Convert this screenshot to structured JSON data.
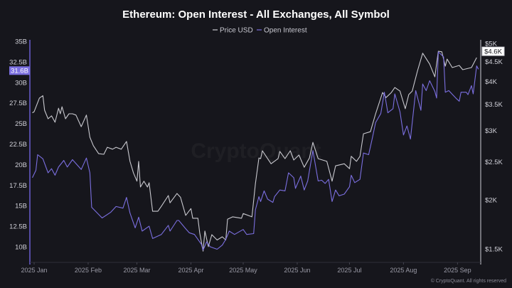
{
  "chart_data": {
    "type": "line",
    "title": "Ethereum: Open Interest - All Exchanges, All Symbol",
    "watermark": "CryptoQuant",
    "copyright": "© CryptoQuant. All rights reserved",
    "legend": {
      "placement": "top-center",
      "entries": [
        "Price USD",
        "Open Interest"
      ]
    },
    "grid": false,
    "x_axis": {
      "type": "date",
      "range": [
        "2024-12-31",
        "2025-09-13"
      ],
      "ticks": [
        {
          "date": "2025-01-01",
          "label": "2025 Jan"
        },
        {
          "date": "2025-02-01",
          "label": "2025 Feb"
        },
        {
          "date": "2025-03-01",
          "label": "2025 Mar"
        },
        {
          "date": "2025-04-01",
          "label": "2025 Apr"
        },
        {
          "date": "2025-05-01",
          "label": "2025 May"
        },
        {
          "date": "2025-06-01",
          "label": "2025 Jun"
        },
        {
          "date": "2025-07-01",
          "label": "2025 Jul"
        },
        {
          "date": "2025-08-01",
          "label": "2025 Aug"
        },
        {
          "date": "2025-09-01",
          "label": "2025 Sep"
        }
      ]
    },
    "y_left": {
      "scale": "linear",
      "range": [
        10,
        35
      ],
      "unit": "B",
      "ticks": [
        {
          "value": 10,
          "label": "10B"
        },
        {
          "value": 12.5,
          "label": "12.5B"
        },
        {
          "value": 15,
          "label": "15B"
        },
        {
          "value": 17.5,
          "label": "17.5B"
        },
        {
          "value": 20,
          "label": "20B"
        },
        {
          "value": 22.5,
          "label": "22.5B"
        },
        {
          "value": 25,
          "label": "25B"
        },
        {
          "value": 27.5,
          "label": "27.5B"
        },
        {
          "value": 30,
          "label": "30B"
        },
        {
          "value": 32.5,
          "label": "32.5B"
        },
        {
          "value": 35,
          "label": "35B"
        }
      ],
      "current_label": "31.6B"
    },
    "y_right": {
      "scale": "log",
      "range": [
        1500,
        5000
      ],
      "unit": "USD",
      "ticks": [
        {
          "value": 1500,
          "label": "$1.5K"
        },
        {
          "value": 2000,
          "label": "$2K"
        },
        {
          "value": 2500,
          "label": "$2.5K"
        },
        {
          "value": 3000,
          "label": "$3K"
        },
        {
          "value": 3500,
          "label": "$3.5K"
        },
        {
          "value": 4000,
          "label": "$4K"
        },
        {
          "value": 4500,
          "label": "$4.5K"
        },
        {
          "value": 5000,
          "label": "$5K"
        }
      ],
      "current_label": "$4.6K"
    },
    "colors": {
      "price": "#c9c9cf",
      "open_interest": "#7b6fe0",
      "background": "#16161c"
    },
    "series": [
      {
        "name": "Price USD",
        "axis": "right",
        "x": [
          "2024-12-31",
          "2025-01-01",
          "2025-01-04",
          "2025-01-06",
          "2025-01-07",
          "2025-01-09",
          "2025-01-11",
          "2025-01-13",
          "2025-01-15",
          "2025-01-16",
          "2025-01-17",
          "2025-01-19",
          "2025-01-21",
          "2025-01-23",
          "2025-01-25",
          "2025-01-28",
          "2025-01-31",
          "2025-02-02",
          "2025-02-04",
          "2025-02-07",
          "2025-02-10",
          "2025-02-12",
          "2025-02-15",
          "2025-02-17",
          "2025-02-20",
          "2025-02-23",
          "2025-02-25",
          "2025-02-27",
          "2025-03-01",
          "2025-03-02",
          "2025-03-03",
          "2025-03-05",
          "2025-03-07",
          "2025-03-08",
          "2025-03-10",
          "2025-03-13",
          "2025-03-15",
          "2025-03-19",
          "2025-03-20",
          "2025-03-24",
          "2025-03-26",
          "2025-03-29",
          "2025-04-01",
          "2025-04-02",
          "2025-04-05",
          "2025-04-06",
          "2025-04-08",
          "2025-04-09",
          "2025-04-11",
          "2025-04-13",
          "2025-04-16",
          "2025-04-19",
          "2025-04-21",
          "2025-04-22",
          "2025-04-25",
          "2025-04-30",
          "2025-05-01",
          "2025-05-06",
          "2025-05-08",
          "2025-05-10",
          "2025-05-11",
          "2025-05-12",
          "2025-05-17",
          "2025-05-21",
          "2025-05-22",
          "2025-05-25",
          "2025-05-28",
          "2025-05-30",
          "2025-06-02",
          "2025-06-05",
          "2025-06-08",
          "2025-06-10",
          "2025-06-13",
          "2025-06-18",
          "2025-06-21",
          "2025-06-23",
          "2025-06-28",
          "2025-07-01",
          "2025-07-02",
          "2025-07-05",
          "2025-07-07",
          "2025-07-09",
          "2025-07-13",
          "2025-07-16",
          "2025-07-20",
          "2025-07-22",
          "2025-07-25",
          "2025-07-27",
          "2025-07-30",
          "2025-08-02",
          "2025-08-04",
          "2025-08-06",
          "2025-08-09",
          "2025-08-12",
          "2025-08-16",
          "2025-08-19",
          "2025-08-21",
          "2025-08-23",
          "2025-08-25",
          "2025-08-26",
          "2025-08-29",
          "2025-09-02",
          "2025-09-04",
          "2025-09-09",
          "2025-09-12"
        ],
        "values": [
          3330,
          3350,
          3630,
          3680,
          3380,
          3215,
          3270,
          3150,
          3420,
          3310,
          3450,
          3215,
          3310,
          3310,
          3285,
          3070,
          3285,
          2885,
          2745,
          2620,
          2610,
          2720,
          2690,
          2720,
          2690,
          2815,
          2505,
          2340,
          2230,
          2505,
          2155,
          2230,
          2155,
          2210,
          1870,
          1870,
          1925,
          2050,
          1965,
          2075,
          2030,
          1825,
          1900,
          1795,
          1795,
          1650,
          1480,
          1665,
          1520,
          1630,
          1580,
          1610,
          1580,
          1785,
          1810,
          1795,
          1845,
          1810,
          2200,
          2555,
          2545,
          2665,
          2470,
          2545,
          2655,
          2545,
          2665,
          2525,
          2600,
          2420,
          2555,
          2800,
          2545,
          2505,
          2230,
          2440,
          2470,
          2400,
          2580,
          2505,
          2580,
          2945,
          2980,
          3310,
          3750,
          3640,
          3750,
          3860,
          3780,
          3410,
          3705,
          3780,
          4250,
          4720,
          4430,
          4110,
          4775,
          4760,
          4375,
          4560,
          4340,
          4395,
          4285,
          4340,
          4600
        ]
      },
      {
        "name": "Open Interest",
        "axis": "left",
        "x": [
          "2024-12-31",
          "2025-01-02",
          "2025-01-03",
          "2025-01-06",
          "2025-01-09",
          "2025-01-11",
          "2025-01-13",
          "2025-01-15",
          "2025-01-18",
          "2025-01-20",
          "2025-01-23",
          "2025-01-28",
          "2025-01-31",
          "2025-02-02",
          "2025-02-03",
          "2025-02-09",
          "2025-02-14",
          "2025-02-17",
          "2025-02-21",
          "2025-02-23",
          "2025-02-25",
          "2025-02-28",
          "2025-03-02",
          "2025-03-04",
          "2025-03-08",
          "2025-03-10",
          "2025-03-15",
          "2025-03-19",
          "2025-03-20",
          "2025-03-24",
          "2025-03-25",
          "2025-03-29",
          "2025-03-31",
          "2025-04-03",
          "2025-04-05",
          "2025-04-07",
          "2025-04-08",
          "2025-04-10",
          "2025-04-12",
          "2025-04-16",
          "2025-04-19",
          "2025-04-21",
          "2025-04-23",
          "2025-04-26",
          "2025-05-01",
          "2025-05-03",
          "2025-05-07",
          "2025-05-08",
          "2025-05-10",
          "2025-05-11",
          "2025-05-13",
          "2025-05-15",
          "2025-05-18",
          "2025-05-19",
          "2025-05-22",
          "2025-05-25",
          "2025-05-27",
          "2025-05-30",
          "2025-05-31",
          "2025-06-03",
          "2025-06-05",
          "2025-06-07",
          "2025-06-10",
          "2025-06-13",
          "2025-06-15",
          "2025-06-17",
          "2025-06-19",
          "2025-06-21",
          "2025-06-23",
          "2025-06-25",
          "2025-06-28",
          "2025-07-01",
          "2025-07-02",
          "2025-07-04",
          "2025-07-07",
          "2025-07-09",
          "2025-07-12",
          "2025-07-14",
          "2025-07-16",
          "2025-07-19",
          "2025-07-21",
          "2025-07-23",
          "2025-07-26",
          "2025-07-27",
          "2025-07-30",
          "2025-08-01",
          "2025-08-03",
          "2025-08-05",
          "2025-08-08",
          "2025-08-11",
          "2025-08-12",
          "2025-08-14",
          "2025-08-16",
          "2025-08-19",
          "2025-08-20",
          "2025-08-21",
          "2025-08-24",
          "2025-08-25",
          "2025-08-27",
          "2025-08-31",
          "2025-09-02",
          "2025-09-03",
          "2025-09-06",
          "2025-09-07",
          "2025-09-09",
          "2025-09-10",
          "2025-09-12",
          "2025-09-13"
        ],
        "values": [
          18.4,
          19.3,
          21.2,
          20.7,
          19.0,
          19.5,
          18.7,
          19.7,
          20.5,
          19.7,
          20.6,
          19.4,
          20.8,
          19.0,
          14.8,
          13.5,
          14.2,
          14.9,
          14.7,
          16.0,
          14.1,
          12.3,
          13.6,
          11.9,
          12.5,
          11.0,
          11.5,
          12.6,
          11.9,
          13.2,
          13.2,
          12.2,
          11.7,
          11.5,
          10.9,
          10.3,
          9.6,
          10.6,
          10.0,
          9.7,
          10.2,
          10.9,
          11.9,
          11.5,
          12.1,
          11.5,
          11.6,
          14.5,
          16.1,
          15.5,
          16.8,
          15.8,
          15.4,
          16.1,
          16.9,
          16.8,
          19.0,
          18.4,
          17.1,
          18.6,
          16.9,
          18.0,
          21.7,
          18.0,
          18.1,
          17.7,
          18.2,
          15.5,
          16.9,
          16.2,
          16.4,
          17.3,
          18.7,
          17.8,
          18.2,
          21.4,
          21.2,
          23.1,
          25.1,
          26.2,
          28.8,
          26.3,
          26.8,
          28.6,
          26.4,
          23.6,
          24.7,
          23.1,
          29.0,
          26.6,
          29.8,
          29.0,
          30.2,
          28.9,
          28.1,
          33.7,
          33.1,
          28.8,
          29.0,
          28.1,
          27.7,
          28.8,
          28.8,
          28.5,
          29.6,
          28.6,
          32.0,
          31.6
        ]
      }
    ]
  }
}
